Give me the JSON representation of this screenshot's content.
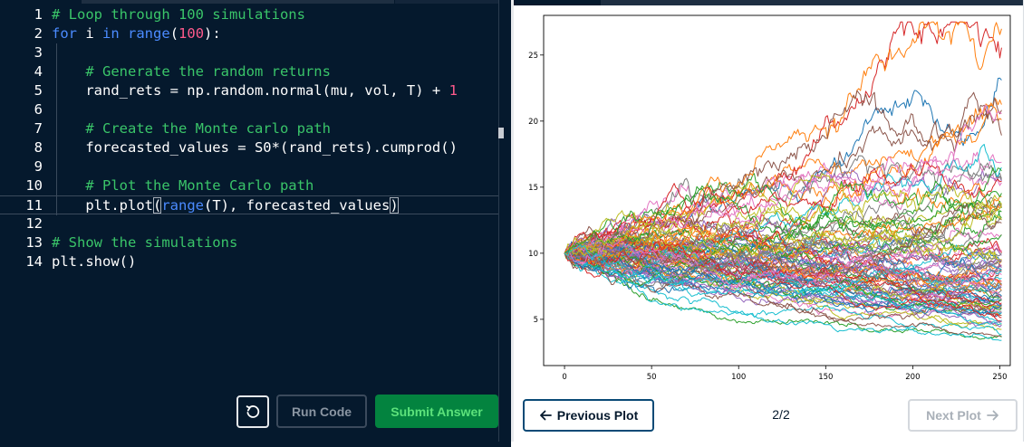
{
  "editor": {
    "lines": [
      {
        "n": "1",
        "tokens": [
          {
            "t": "# Loop through 100 simulations",
            "c": "com"
          }
        ]
      },
      {
        "n": "2",
        "tokens": [
          {
            "t": "for",
            "c": "kw"
          },
          {
            "t": " i ",
            "c": "plain"
          },
          {
            "t": "in",
            "c": "kw"
          },
          {
            "t": " ",
            "c": "plain"
          },
          {
            "t": "range",
            "c": "kw"
          },
          {
            "t": "(",
            "c": "plain"
          },
          {
            "t": "100",
            "c": "num"
          },
          {
            "t": "):",
            "c": "plain"
          }
        ]
      },
      {
        "n": "3",
        "tokens": []
      },
      {
        "n": "4",
        "tokens": [
          {
            "t": "    # Generate the random returns",
            "c": "com"
          }
        ]
      },
      {
        "n": "5",
        "tokens": [
          {
            "t": "    rand_rets = np.random.normal(mu, vol, T) + ",
            "c": "plain"
          },
          {
            "t": "1",
            "c": "num"
          }
        ]
      },
      {
        "n": "6",
        "tokens": []
      },
      {
        "n": "7",
        "tokens": [
          {
            "t": "    # Create the Monte carlo path",
            "c": "com"
          }
        ]
      },
      {
        "n": "8",
        "tokens": [
          {
            "t": "    forecasted_values = S0*(rand_rets).cumprod()",
            "c": "plain"
          }
        ]
      },
      {
        "n": "9",
        "tokens": []
      },
      {
        "n": "10",
        "tokens": [
          {
            "t": "    # Plot the Monte Carlo path",
            "c": "com"
          }
        ]
      },
      {
        "n": "11",
        "tokens": [
          {
            "t": "    plt.plot",
            "c": "plain"
          },
          {
            "t": "(",
            "c": "plain",
            "brk": true
          },
          {
            "t": "range",
            "c": "kw"
          },
          {
            "t": "(T), forecasted_values",
            "c": "plain"
          },
          {
            "t": ")",
            "c": "plain",
            "brk": true
          }
        ],
        "active": true
      },
      {
        "n": "12",
        "tokens": []
      },
      {
        "n": "13",
        "tokens": [
          {
            "t": "# Show the simulations",
            "c": "com"
          }
        ]
      },
      {
        "n": "14",
        "tokens": [
          {
            "t": "plt.show()",
            "c": "plain"
          }
        ]
      }
    ],
    "buttons": {
      "reset_icon": "reset-icon",
      "run_label": "Run Code",
      "submit_label": "Submit Answer"
    }
  },
  "plot_nav": {
    "prev_label": "Previous Plot",
    "counter": "2/2",
    "next_label": "Next Plot"
  },
  "chart_data": {
    "type": "line",
    "title": "",
    "xlabel": "",
    "ylabel": "",
    "xlim": [
      -12,
      256
    ],
    "ylim": [
      1.5,
      28
    ],
    "xticks": [
      0,
      50,
      100,
      150,
      200,
      250
    ],
    "yticks": [
      5,
      10,
      15,
      20,
      25
    ],
    "grid": false,
    "legend": "none",
    "n_series": 100,
    "n_points": 252,
    "start_value": 10,
    "final_range_observed": [
      3,
      24.5
    ],
    "max_observed": 27,
    "colors": [
      "#1f77b4",
      "#ff7f0e",
      "#2ca02c",
      "#d62728",
      "#9467bd",
      "#8c564b",
      "#e377c2",
      "#7f7f7f",
      "#bcbd22",
      "#17becf"
    ]
  }
}
